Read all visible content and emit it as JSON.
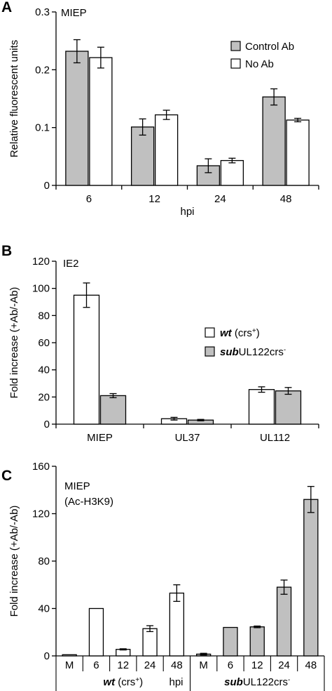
{
  "chart_data": [
    {
      "panel": "A",
      "type": "bar",
      "inset_label": "MIEP",
      "categories": [
        "6",
        "12",
        "24",
        "48"
      ],
      "series": [
        {
          "name": "Control Ab",
          "color": "#c0c0c0",
          "values": [
            0.232,
            0.101,
            0.034,
            0.153
          ],
          "errors": [
            0.02,
            0.014,
            0.012,
            0.014
          ]
        },
        {
          "name": "No Ab",
          "color": "#ffffff",
          "values": [
            0.221,
            0.122,
            0.043,
            0.113
          ],
          "errors": [
            0.018,
            0.008,
            0.004,
            0.003
          ]
        }
      ],
      "xlabel": "hpi",
      "ylabel": "Relative fluorescent units",
      "ylim": [
        0,
        0.3
      ],
      "yticks": [
        0,
        0.1,
        0.2,
        0.3
      ],
      "ytick_labels": [
        "0",
        "0.1",
        "0.2",
        "0.3"
      ],
      "legend_position": "top-right",
      "grid": false
    },
    {
      "panel": "B",
      "type": "bar",
      "inset_label": "IE2",
      "categories": [
        "MIEP",
        "UL37",
        "UL112"
      ],
      "series": [
        {
          "name_italic": "wt",
          "name_rest": " (crs",
          "name_sup": "+",
          "name_tail": ")",
          "color": "#ffffff",
          "values": [
            95,
            4,
            25.5
          ],
          "errors": [
            9,
            1,
            2
          ]
        },
        {
          "name_italic": "sub",
          "name_rest": "UL122crs",
          "name_sup": "-",
          "name_tail": "",
          "color": "#c0c0c0",
          "values": [
            21,
            3,
            24.5
          ],
          "errors": [
            1.5,
            0.5,
            2.5
          ]
        }
      ],
      "xlabel": "",
      "ylabel": "Fold increase (+Ab/-Ab)",
      "ylim": [
        0,
        120
      ],
      "yticks": [
        0,
        20,
        40,
        60,
        80,
        100,
        120
      ],
      "ytick_labels": [
        "0",
        "20",
        "40",
        "60",
        "80",
        "100",
        "120"
      ],
      "legend_position": "center-right",
      "grid": false
    },
    {
      "panel": "C",
      "type": "bar",
      "inset_label": "MIEP",
      "inset_label_2": "(Ac-H3K9)",
      "categories": [
        "M",
        "6",
        "12",
        "24",
        "48",
        "M",
        "6",
        "12",
        "24",
        "48"
      ],
      "groups": [
        {
          "italic": "wt",
          "rest": " (crs",
          "sup": "+",
          "tail": ")"
        },
        {
          "italic": "sub",
          "rest": "UL122crs",
          "sup": "-",
          "tail": ""
        }
      ],
      "colors": [
        "#ffffff",
        "#ffffff",
        "#ffffff",
        "#ffffff",
        "#ffffff",
        "#c0c0c0",
        "#c0c0c0",
        "#c0c0c0",
        "#c0c0c0",
        "#c0c0c0"
      ],
      "values": [
        1,
        40,
        5.5,
        23,
        53,
        1.5,
        24,
        24.5,
        58,
        132
      ],
      "errors": [
        0,
        0,
        0.5,
        2.5,
        7,
        0.7,
        0,
        0.7,
        6,
        11
      ],
      "xlabel": "hpi",
      "ylabel": "Fold increase (+Ab/-Ab)",
      "ylim": [
        0,
        160
      ],
      "yticks": [
        0,
        40,
        80,
        120,
        160
      ],
      "ytick_labels": [
        "0",
        "40",
        "80",
        "120",
        "160"
      ],
      "grid": false
    }
  ]
}
